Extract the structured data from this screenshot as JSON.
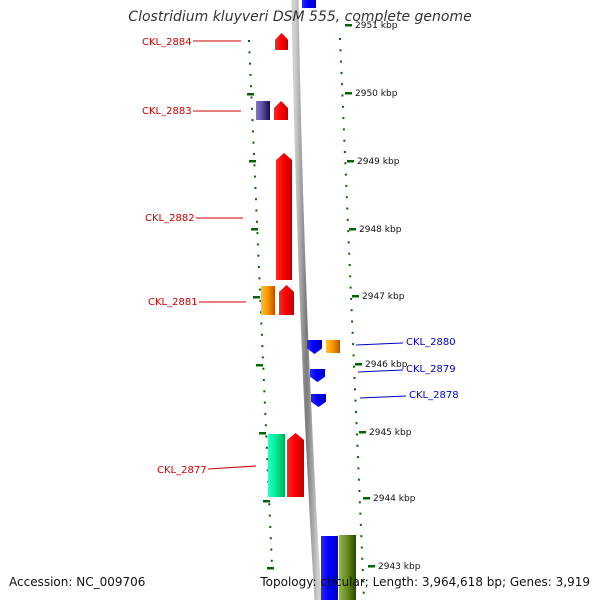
{
  "title": "Clostridium kluyveri DSM 555, complete genome",
  "footer": {
    "accession": "Accession: NC_009706",
    "summary": "Topology: circular; Length: 3,964,618 bp; Genes: 3,919"
  },
  "colors": {
    "forward_label": "#cc0000",
    "reverse_label": "#0000cc",
    "tick": "#006600",
    "backbone": "#8a8a8a"
  },
  "scale": {
    "unit": "kbp",
    "ticks": [
      {
        "kbp": 2951,
        "label": "2951 kbp"
      },
      {
        "kbp": 2950,
        "label": "2950 kbp"
      },
      {
        "kbp": 2949,
        "label": "2949 kbp"
      },
      {
        "kbp": 2948,
        "label": "2948 kbp"
      },
      {
        "kbp": 2947,
        "label": "2947 kbp"
      },
      {
        "kbp": 2946,
        "label": "2946 kbp"
      },
      {
        "kbp": 2945,
        "label": "2945 kbp"
      },
      {
        "kbp": 2944,
        "label": "2944 kbp"
      },
      {
        "kbp": 2943,
        "label": "2943 kbp"
      }
    ]
  },
  "features": [
    {
      "name": "CKL_2884",
      "strand": "forward",
      "color": "#ff0000",
      "labeled": true
    },
    {
      "name": "CKL_2883",
      "strand": "forward",
      "color": "#ff0000",
      "labeled": true
    },
    {
      "name": "CKL_2883 gene",
      "strand": "forward",
      "color": "#5a4f9a",
      "labeled": false
    },
    {
      "name": "CKL_2882",
      "strand": "forward",
      "color": "#ff0000",
      "labeled": true
    },
    {
      "name": "CKL_2881",
      "strand": "forward",
      "color": "#ff0000",
      "labeled": true
    },
    {
      "name": "CKL_2881 gene",
      "strand": "forward",
      "color": "#ff9900",
      "labeled": false
    },
    {
      "name": "CKL_2880",
      "strand": "reverse",
      "color": "#0000ff",
      "labeled": true
    },
    {
      "name": "CKL_2880 gene",
      "strand": "reverse",
      "color": "#ff9900",
      "labeled": false
    },
    {
      "name": "CKL_2879",
      "strand": "reverse",
      "color": "#0000ff",
      "labeled": true
    },
    {
      "name": "CKL_2878",
      "strand": "reverse",
      "color": "#0000ff",
      "labeled": true
    },
    {
      "name": "CKL_2877",
      "strand": "forward",
      "color": "#ff0000",
      "labeled": true
    },
    {
      "name": "CKL_2877 gene",
      "strand": "forward",
      "color": "#00ee99",
      "labeled": false
    },
    {
      "name": "reverse gene 1",
      "strand": "reverse",
      "color": "#0000ff",
      "labeled": false
    },
    {
      "name": "reverse gene 2",
      "strand": "reverse",
      "color": "#6b8e23",
      "labeled": false
    },
    {
      "name": "top reverse gene",
      "strand": "reverse",
      "color": "#0000ff",
      "labeled": false
    }
  ]
}
